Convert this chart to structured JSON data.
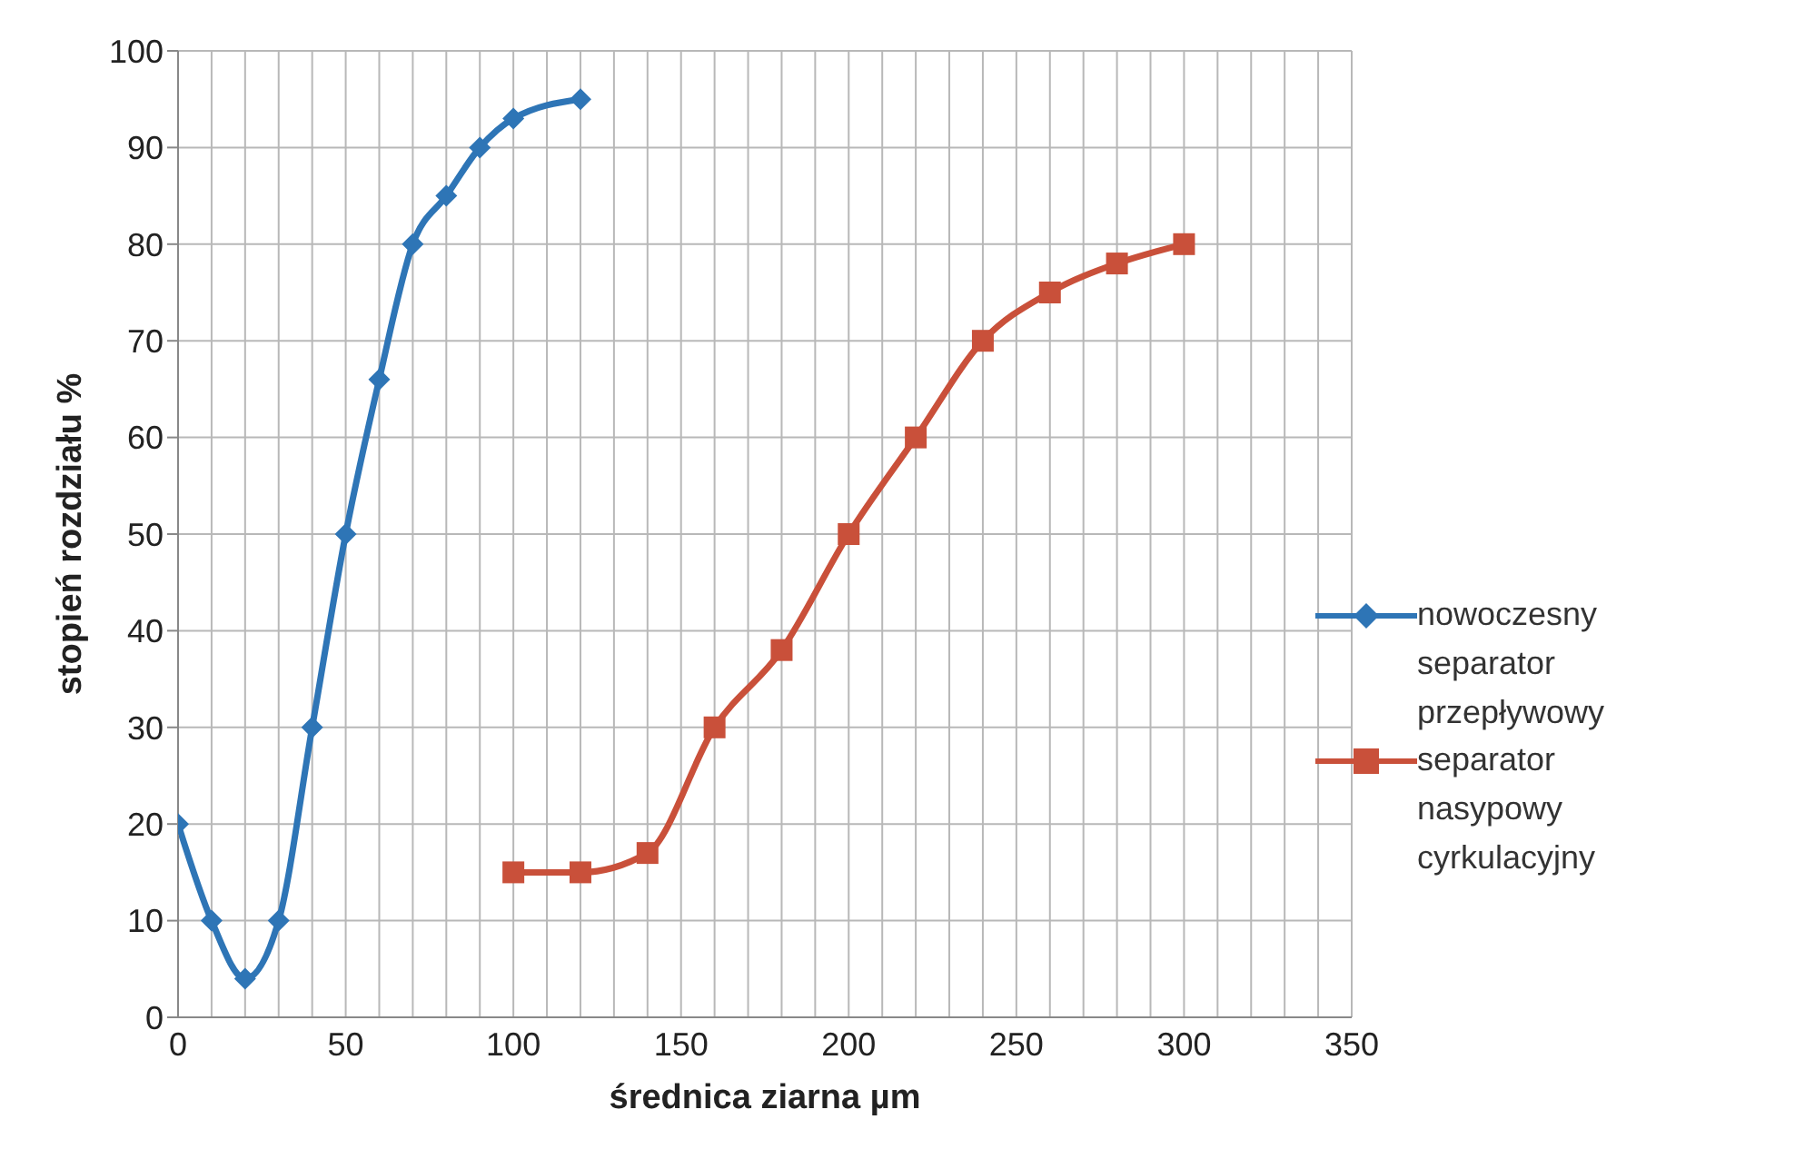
{
  "chart_data": {
    "type": "line",
    "xlabel": "średnica ziarna µm",
    "ylabel": "stopień rozdziału %",
    "xlim": [
      0,
      350
    ],
    "xticks": [
      0,
      {
        "value": 10,
        "label": null
      },
      {
        "value": 20,
        "label": null
      },
      {
        "value": 30,
        "label": null
      },
      {
        "value": 40,
        "label": null
      },
      50,
      {
        "value": 60,
        "label": null
      },
      {
        "value": 70,
        "label": null
      },
      {
        "value": 80,
        "label": null
      },
      {
        "value": 90,
        "label": null
      },
      100,
      {
        "value": 110,
        "label": null
      },
      {
        "value": 120,
        "label": null
      },
      {
        "value": 130,
        "label": null
      },
      {
        "value": 140,
        "label": null
      },
      150,
      {
        "value": 160,
        "label": null
      },
      {
        "value": 170,
        "label": null
      },
      {
        "value": 180,
        "label": null
      },
      {
        "value": 190,
        "label": null
      },
      200,
      {
        "value": 210,
        "label": null
      },
      {
        "value": 220,
        "label": null
      },
      {
        "value": 230,
        "label": null
      },
      {
        "value": 240,
        "label": null
      },
      250,
      {
        "value": 260,
        "label": null
      },
      {
        "value": 270,
        "label": null
      },
      {
        "value": 280,
        "label": null
      },
      {
        "value": 290,
        "label": null
      },
      300,
      {
        "value": 310,
        "label": null
      },
      {
        "value": 320,
        "label": null
      },
      {
        "value": 330,
        "label": null
      },
      {
        "value": 340,
        "label": null
      },
      350
    ],
    "ylim": [
      0,
      100
    ],
    "yticks": [
      0,
      10,
      20,
      30,
      40,
      50,
      60,
      70,
      80,
      90,
      100
    ],
    "grid": true,
    "legend": "right",
    "line_style": "solid",
    "series": [
      {
        "name": "nowoczesny separator przepływowy",
        "color": "#2e75b6",
        "marker": "diamond",
        "x": [
          0,
          10,
          20,
          30,
          40,
          50,
          60,
          70,
          80,
          90,
          100,
          120
        ],
        "values": [
          20,
          10,
          4,
          10,
          30,
          50,
          66,
          80,
          85,
          90,
          93,
          95
        ]
      },
      {
        "name": "separator nasypowy cyrkulacyjny",
        "color": "#c9503a",
        "marker": "square",
        "x": [
          100,
          120,
          140,
          160,
          180,
          200,
          220,
          240,
          260,
          280,
          300
        ],
        "values": [
          15,
          15,
          17,
          30,
          38,
          50,
          60,
          70,
          75,
          78,
          80
        ]
      }
    ]
  }
}
